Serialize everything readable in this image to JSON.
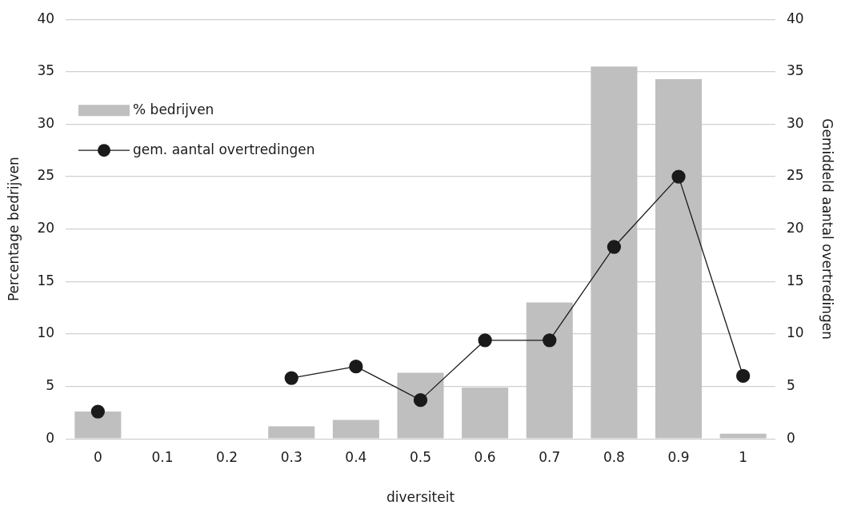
{
  "chart_data": {
    "type": "bar",
    "xlabel": "diversiteit",
    "ylabel": "Percentage bedrijven",
    "y2label": "Gemiddeld aantal overtredingen",
    "categories": [
      "0",
      "0.1",
      "0.2",
      "0.3",
      "0.4",
      "0.5",
      "0.6",
      "0.7",
      "0.8",
      "0.9",
      "1"
    ],
    "series": [
      {
        "name": "% bedrijven",
        "color": "#bfbfbf",
        "values": [
          2.6,
          null,
          null,
          1.2,
          1.8,
          6.3,
          4.9,
          13,
          35.5,
          34.3,
          0.5
        ]
      },
      {
        "name": "gem. aantal overtredingen",
        "type": "line",
        "axis": "y2",
        "color": "#1a1a1a",
        "marker": "circle",
        "values": [
          2.6,
          null,
          null,
          5.8,
          6.9,
          3.7,
          9.4,
          9.4,
          18.3,
          25,
          6
        ]
      }
    ],
    "ylim": [
      0,
      40
    ],
    "yticks": [
      0,
      5,
      10,
      15,
      20,
      25,
      30,
      35,
      40
    ],
    "y2lim": [
      0,
      40
    ],
    "y2ticks": [
      0,
      5,
      10,
      15,
      20,
      25,
      30,
      35,
      40
    ],
    "grid": "y",
    "legend": "top left"
  }
}
